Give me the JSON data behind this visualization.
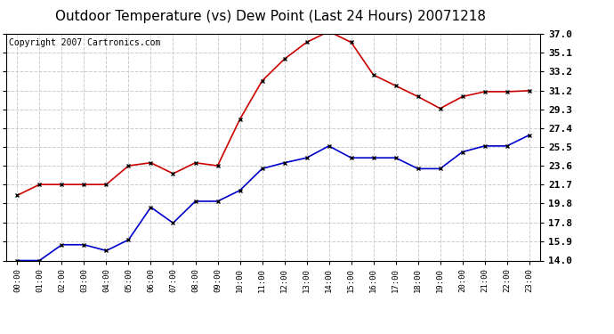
{
  "title": "Outdoor Temperature (vs) Dew Point (Last 24 Hours) 20071218",
  "copyright": "Copyright 2007 Cartronics.com",
  "hours": [
    "00:00",
    "01:00",
    "02:00",
    "03:00",
    "04:00",
    "05:00",
    "06:00",
    "07:00",
    "08:00",
    "09:00",
    "10:00",
    "11:00",
    "12:00",
    "13:00",
    "14:00",
    "15:00",
    "16:00",
    "17:00",
    "18:00",
    "19:00",
    "20:00",
    "21:00",
    "22:00",
    "23:00"
  ],
  "temp": [
    20.6,
    21.7,
    21.7,
    21.7,
    21.7,
    23.6,
    23.9,
    22.8,
    23.9,
    23.6,
    28.3,
    32.2,
    34.4,
    36.1,
    37.2,
    36.1,
    32.8,
    31.7,
    30.6,
    29.4,
    30.6,
    31.1,
    31.1,
    31.2
  ],
  "dew": [
    14.0,
    14.0,
    15.6,
    15.6,
    15.0,
    16.1,
    19.4,
    17.8,
    20.0,
    20.0,
    21.1,
    23.3,
    23.9,
    24.4,
    25.6,
    24.4,
    24.4,
    24.4,
    23.3,
    23.3,
    25.0,
    25.6,
    25.6,
    26.7
  ],
  "temp_color": "#cc0000",
  "dew_color": "#0000cc",
  "yticks": [
    14.0,
    15.9,
    17.8,
    19.8,
    21.7,
    23.6,
    25.5,
    27.4,
    29.3,
    31.2,
    33.2,
    35.1,
    37.0
  ],
  "ymin": 14.0,
  "ymax": 37.0,
  "bg_color": "#ffffff",
  "plot_bg_color": "#ffffff",
  "grid_color": "#cccccc",
  "title_fontsize": 11,
  "copyright_fontsize": 7
}
